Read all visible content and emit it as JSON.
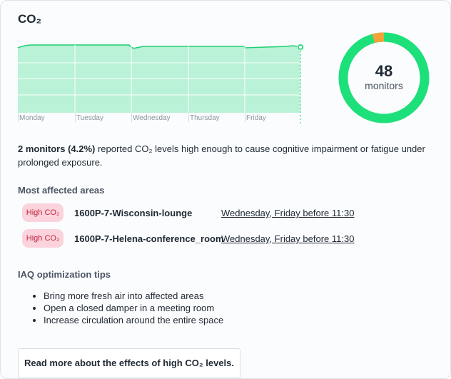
{
  "title": "CO₂",
  "trend": {
    "days": [
      "Monday",
      "Tuesday",
      "Wednesday",
      "Thursday",
      "Friday"
    ]
  },
  "donut": {
    "total": 48,
    "total_label": "monitors",
    "high": 2,
    "color": "#1ee07a",
    "high_color": "#f2a33a"
  },
  "summary": {
    "bold": "2 monitors (4.2%)",
    "text": " reported CO₂ levels high enough to cause cognitive impairment or fatigue under prolonged exposure."
  },
  "affected": {
    "heading": "Most affected areas",
    "rows": [
      {
        "badge": "High CO₂",
        "name": "1600P-7-Wisconsin-lounge",
        "when": "Wednesday, Friday before 11:30"
      },
      {
        "badge": "High CO₂",
        "name": "1600P-7-Helena-conference_room",
        "when": "Wednesday, Friday before 11:30"
      }
    ]
  },
  "tips": {
    "heading": "IAQ optimization tips",
    "items": [
      "Bring more fresh air into affected areas",
      "Open a closed damper in a meeting room",
      "Increase circulation around the entire space"
    ]
  },
  "button": "Read more about the effects of high CO₂ levels."
}
